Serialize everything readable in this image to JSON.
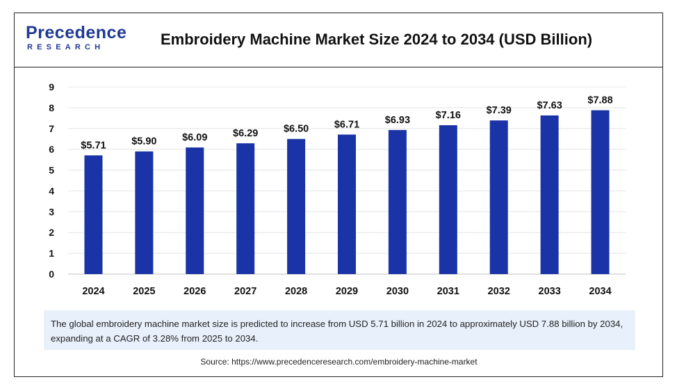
{
  "brand": {
    "name": "Precedence",
    "subtitle": "RESEARCH",
    "color": "#1f3a93"
  },
  "header": {
    "title": "Embroidery Machine Market Size 2024 to 2034 (USD Billion)"
  },
  "chart_data": {
    "type": "bar",
    "title": "Embroidery Machine Market Size 2024 to 2034 (USD Billion)",
    "categories": [
      "2024",
      "2025",
      "2026",
      "2027",
      "2028",
      "2029",
      "2030",
      "2031",
      "2032",
      "2033",
      "2034"
    ],
    "values": [
      5.71,
      5.9,
      6.09,
      6.29,
      6.5,
      6.71,
      6.93,
      7.16,
      7.39,
      7.63,
      7.88
    ],
    "data_labels": [
      "$5.71",
      "$5.90",
      "$6.09",
      "$6.29",
      "$6.50",
      "$6.71",
      "$6.93",
      "$7.16",
      "$7.39",
      "$7.63",
      "$7.88"
    ],
    "yticks": [
      "0",
      "1",
      "2",
      "3",
      "4",
      "5",
      "6",
      "7",
      "8",
      "9"
    ],
    "ylim": [
      0,
      9
    ],
    "xlabel": "",
    "ylabel": "",
    "grid": true,
    "bar_color": "#1a33a6"
  },
  "summary": {
    "text": "The global embroidery machine market size is predicted to increase from USD 5.71 billion in 2024 to approximately USD 7.88 billion by 2034, expanding at a CAGR of 3.28% from 2025 to 2034."
  },
  "footer": {
    "source": "Source: https://www.precedenceresearch.com/embroidery-machine-market"
  }
}
